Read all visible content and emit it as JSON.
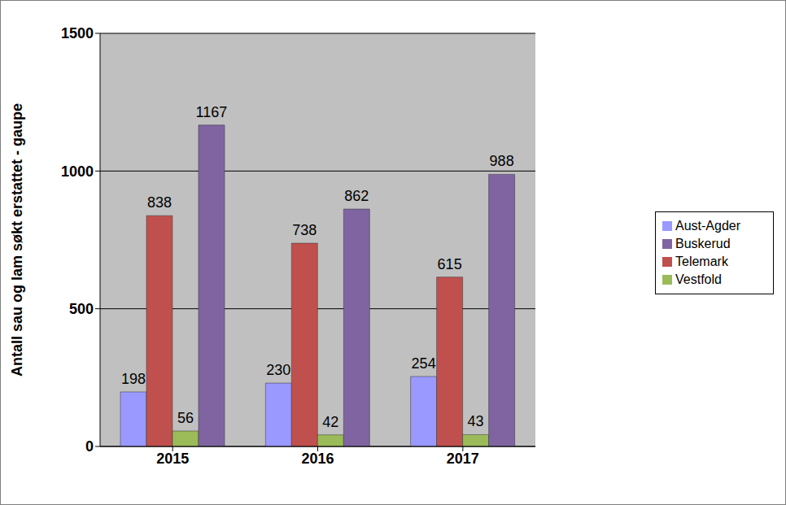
{
  "chart_data": {
    "type": "bar",
    "y_label": "Antall sau og lam søkt erstattet - gaupe",
    "categories": [
      "2015",
      "2016",
      "2017"
    ],
    "series": [
      {
        "name": "Aust-Agder",
        "color": "#9999ff",
        "values": [
          198,
          230,
          254
        ]
      },
      {
        "name": "Telemark",
        "color": "#c0504d",
        "values": [
          838,
          738,
          615
        ]
      },
      {
        "name": "Vestfold",
        "color": "#9bbb59",
        "values": [
          56,
          42,
          43
        ]
      },
      {
        "name": "Buskerud",
        "color": "#8064a2",
        "values": [
          1167,
          862,
          988
        ]
      }
    ],
    "ylim": [
      0,
      1500
    ],
    "yticks": [
      0,
      500,
      1000,
      1500
    ],
    "grid": true,
    "legend": "right",
    "data_labels": true
  }
}
